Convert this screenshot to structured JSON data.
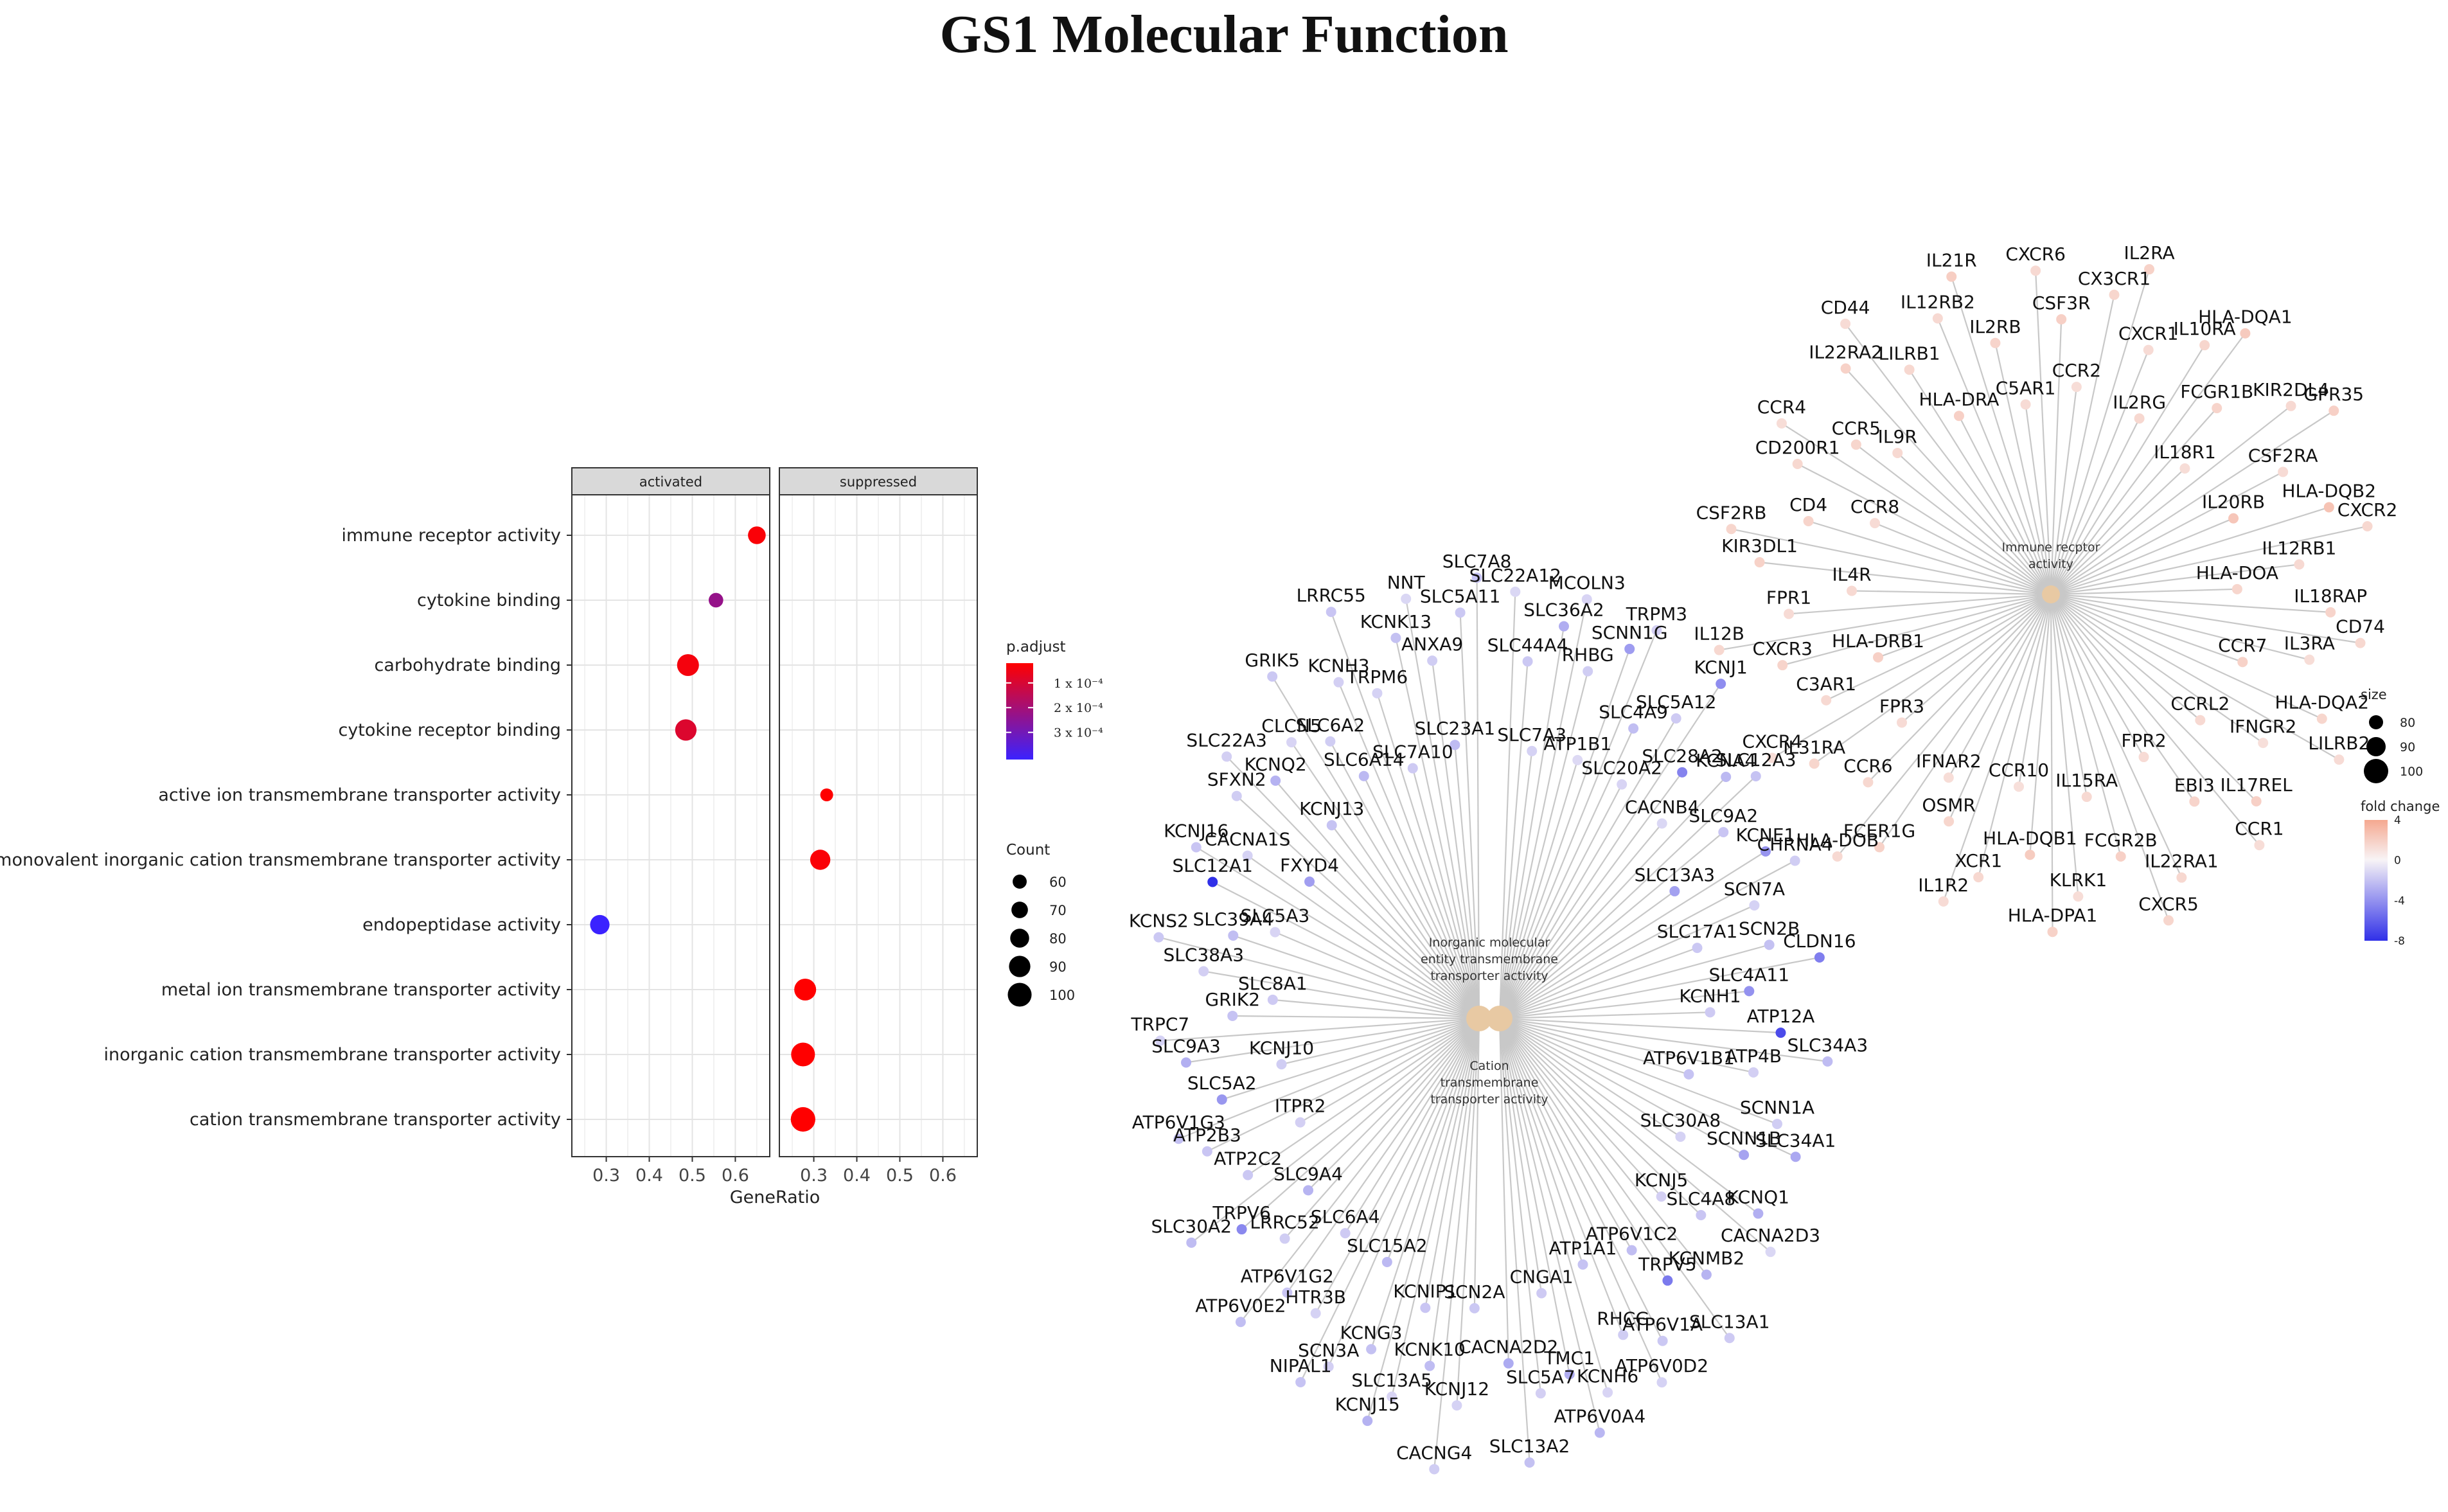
{
  "title": "GS1 Molecular Function",
  "chart_data": [
    {
      "type": "scatter",
      "subtype": "dotplot",
      "facets": [
        "activated",
        "suppressed"
      ],
      "xlabel": "GeneRatio",
      "xticks": [
        0.3,
        0.4,
        0.5,
        0.6
      ],
      "xlim": [
        0.22,
        0.68
      ],
      "terms": [
        "immune receptor activity",
        "cytokine binding",
        "carbohydrate binding",
        "cytokine receptor binding",
        "active ion transmembrane transporter activity",
        "monovalent inorganic cation transmembrane transporter activity",
        "endopeptidase activity",
        "metal ion transmembrane transporter activity",
        "inorganic cation transmembrane transporter activity",
        "cation transmembrane transporter activity"
      ],
      "points": [
        {
          "term": "immune receptor activity",
          "facet": "activated",
          "gene_ratio": 0.65,
          "count": 75,
          "p_adjust": 3e-05
        },
        {
          "term": "cytokine binding",
          "facet": "activated",
          "gene_ratio": 0.555,
          "count": 62,
          "p_adjust": 0.00023
        },
        {
          "term": "carbohydrate binding",
          "facet": "activated",
          "gene_ratio": 0.49,
          "count": 92,
          "p_adjust": 4e-05
        },
        {
          "term": "cytokine receptor binding",
          "facet": "activated",
          "gene_ratio": 0.485,
          "count": 90,
          "p_adjust": 9e-05
        },
        {
          "term": "active ion transmembrane transporter activity",
          "facet": "suppressed",
          "gene_ratio": 0.33,
          "count": 55,
          "p_adjust": 2e-05
        },
        {
          "term": "monovalent inorganic cation transmembrane transporter activity",
          "facet": "suppressed",
          "gene_ratio": 0.315,
          "count": 85,
          "p_adjust": 3e-05
        },
        {
          "term": "endopeptidase activity",
          "facet": "activated",
          "gene_ratio": 0.285,
          "count": 82,
          "p_adjust": 0.00041
        },
        {
          "term": "metal ion transmembrane transporter activity",
          "facet": "suppressed",
          "gene_ratio": 0.28,
          "count": 92,
          "p_adjust": 2e-05
        },
        {
          "term": "inorganic cation transmembrane transporter activity",
          "facet": "suppressed",
          "gene_ratio": 0.275,
          "count": 100,
          "p_adjust": 2e-05
        },
        {
          "term": "cation transmembrane transporter activity",
          "facet": "suppressed",
          "gene_ratio": 0.275,
          "count": 103,
          "p_adjust": 2e-05
        }
      ],
      "color_legend": {
        "title": "p.adjust",
        "low_color": "#ff0000",
        "high_color": "#3b22ff",
        "labels": [
          "1 x 10⁻⁴",
          "2 x 10⁻⁴",
          "3 x 10⁻⁴"
        ],
        "values": [
          0.0001,
          0.0002,
          0.0003
        ],
        "range": [
          2e-05,
          0.00041
        ]
      },
      "size_legend": {
        "title": "Count",
        "values": [
          60,
          70,
          80,
          90,
          100
        ],
        "labels": [
          "60",
          "70",
          "80",
          "90",
          "100"
        ]
      }
    },
    {
      "type": "network",
      "subtype": "cnetplot",
      "hubs": [
        {
          "id": "immune",
          "label": [
            "Immune recptor",
            "activity"
          ]
        },
        {
          "id": "inorganic",
          "label": [
            "Inorganic molecular",
            "entity transmembrane",
            "transporter activity"
          ]
        },
        {
          "id": "cation",
          "label": [
            "Cation",
            "transmembrane",
            "transporter activity"
          ]
        }
      ],
      "size_legend": {
        "title": "size",
        "values": [
          80,
          90,
          100
        ],
        "labels": [
          "80",
          "90",
          "100"
        ]
      },
      "fold_change_legend": {
        "title": "fold change",
        "ticks": [
          4,
          0,
          -4,
          -8
        ],
        "labels": [
          "4",
          "0",
          "-4",
          "-8"
        ],
        "high_color": "#f5a890",
        "mid_color": "#f8f4f6",
        "low_color": "#3030e8"
      },
      "immune_genes": [
        {
          "label": "CXCR6",
          "fc": 1.4
        },
        {
          "label": "CSF3R",
          "fc": 1.9
        },
        {
          "label": "CCR2",
          "fc": 1.2
        },
        {
          "label": "CX3CR1",
          "fc": 1.6
        },
        {
          "label": "IL2RA",
          "fc": 1.8
        },
        {
          "label": "CXCR1",
          "fc": 1.3
        },
        {
          "label": "IL2RG",
          "fc": 1.5
        },
        {
          "label": "IL10RA",
          "fc": 1.6
        },
        {
          "label": "HLA-DQA1",
          "fc": 2.2
        },
        {
          "label": "FCGR1B",
          "fc": 1.7
        },
        {
          "label": "IL18R1",
          "fc": 1.2
        },
        {
          "label": "KIR2DL4",
          "fc": 1.4
        },
        {
          "label": "GPR35",
          "fc": 1.9
        },
        {
          "label": "CSF2RA",
          "fc": 1.3
        },
        {
          "label": "IL20RB",
          "fc": 2.4
        },
        {
          "label": "HLA-DQB2",
          "fc": 2.6
        },
        {
          "label": "CXCR2",
          "fc": 1.5
        },
        {
          "label": "IL12RB1",
          "fc": 1.4
        },
        {
          "label": "HLA-DOA",
          "fc": 1.6
        },
        {
          "label": "IL18RAP",
          "fc": 1.7
        },
        {
          "label": "CD74",
          "fc": 1.5
        },
        {
          "label": "IL3RA",
          "fc": 1.2
        },
        {
          "label": "CCR7",
          "fc": 1.8
        },
        {
          "label": "HLA-DQA2",
          "fc": 1.6
        },
        {
          "label": "LILRB2",
          "fc": 1.3
        },
        {
          "label": "IFNGR2",
          "fc": 1.1
        },
        {
          "label": "CCRL2",
          "fc": 1.4
        },
        {
          "label": "IL17REL",
          "fc": 1.9
        },
        {
          "label": "CCR1",
          "fc": 1.2
        },
        {
          "label": "EBI3",
          "fc": 1.7
        },
        {
          "label": "FPR2",
          "fc": 1.3
        },
        {
          "label": "IL22RA1",
          "fc": 1.5
        },
        {
          "label": "CXCR5",
          "fc": 1.6
        },
        {
          "label": "FCGR2B",
          "fc": 1.9
        },
        {
          "label": "IL15RA",
          "fc": 1.4
        },
        {
          "label": "KLRK1",
          "fc": 1.2
        },
        {
          "label": "HLA-DPA1",
          "fc": 1.8
        },
        {
          "label": "HLA-DQB1",
          "fc": 2.1
        },
        {
          "label": "CCR10",
          "fc": 1.1
        },
        {
          "label": "XCR1",
          "fc": 1.5
        },
        {
          "label": "IL1R2",
          "fc": 1.3
        },
        {
          "label": "OSMR",
          "fc": 1.6
        },
        {
          "label": "IFNAR2",
          "fc": 1.2
        },
        {
          "label": "FCER1G",
          "fc": 1.8
        },
        {
          "label": "HLA-DOB",
          "fc": 1.4
        },
        {
          "label": "CCR6",
          "fc": 1.5
        },
        {
          "label": "FPR3",
          "fc": 1.3
        },
        {
          "label": "IL31RA",
          "fc": 1.6
        },
        {
          "label": "CXCR4",
          "fc": 1.2
        },
        {
          "label": "C3AR1",
          "fc": 1.4
        },
        {
          "label": "HLA-DRB1",
          "fc": 1.9
        },
        {
          "label": "CXCR3",
          "fc": 1.7
        },
        {
          "label": "IL12B",
          "fc": 1.5
        },
        {
          "label": "FPR1",
          "fc": 1.3
        },
        {
          "label": "IL4R",
          "fc": 1.4
        },
        {
          "label": "KIR3DL1",
          "fc": 1.8
        },
        {
          "label": "CSF2RB",
          "fc": 1.6
        },
        {
          "label": "CD4",
          "fc": 1.7
        },
        {
          "label": "CCR8",
          "fc": 1.3
        },
        {
          "label": "CD200R1",
          "fc": 1.5
        },
        {
          "label": "CCR4",
          "fc": 1.2
        },
        {
          "label": "CCR5",
          "fc": 1.6
        },
        {
          "label": "IL9R",
          "fc": 1.4
        },
        {
          "label": "IL22RA2",
          "fc": 1.8
        },
        {
          "label": "CD44",
          "fc": 1.3
        },
        {
          "label": "LILRB1",
          "fc": 1.5
        },
        {
          "label": "HLA-DRA",
          "fc": 1.9
        },
        {
          "label": "IL12RB2",
          "fc": 1.4
        },
        {
          "label": "IL21R",
          "fc": 2.0
        },
        {
          "label": "IL2RB",
          "fc": 1.7
        },
        {
          "label": "C5AR1",
          "fc": 1.3
        }
      ],
      "transporter_genes": [
        {
          "label": "SLC22A12",
          "fc": -1.2
        },
        {
          "label": "SLC44A4",
          "fc": -1.8
        },
        {
          "label": "SLC7A3",
          "fc": -1.4
        },
        {
          "label": "SLC36A2",
          "fc": -2.9
        },
        {
          "label": "MCOLN3",
          "fc": -1.3
        },
        {
          "label": "RHBG",
          "fc": -1.6
        },
        {
          "label": "ATP1B1",
          "fc": -1.1
        },
        {
          "label": "SCNN1G",
          "fc": -3.6
        },
        {
          "label": "TRPM3",
          "fc": -1.5
        },
        {
          "label": "SLC4A9",
          "fc": -2.2
        },
        {
          "label": "SLC20A2",
          "fc": -1.3
        },
        {
          "label": "SLC5A12",
          "fc": -1.7
        },
        {
          "label": "KCNJ1",
          "fc": -4.2
        },
        {
          "label": "SLC28A2",
          "fc": -4.6
        },
        {
          "label": "CACNB4",
          "fc": -1.2
        },
        {
          "label": "KCNA4",
          "fc": -2.4
        },
        {
          "label": "SLC12A3",
          "fc": -2.0
        },
        {
          "label": "SLC9A2",
          "fc": -1.9
        },
        {
          "label": "SLC13A3",
          "fc": -3.4
        },
        {
          "label": "KCNE1",
          "fc": -3.9
        },
        {
          "label": "CHRNA4",
          "fc": -1.6
        },
        {
          "label": "SCN7A",
          "fc": -1.4
        },
        {
          "label": "SLC17A1",
          "fc": -1.8
        },
        {
          "label": "SCN2B",
          "fc": -2.1
        },
        {
          "label": "CLDN16",
          "fc": -4.8
        },
        {
          "label": "SLC4A11",
          "fc": -4.0
        },
        {
          "label": "KCNH1",
          "fc": -1.7
        },
        {
          "label": "ATP12A",
          "fc": -6.9
        },
        {
          "label": "SLC34A3",
          "fc": -2.3
        },
        {
          "label": "ATP4B",
          "fc": -1.5
        },
        {
          "label": "ATP6V1B1",
          "fc": -2.0
        },
        {
          "label": "SCNN1A",
          "fc": -1.6
        },
        {
          "label": "SLC34A1",
          "fc": -3.1
        },
        {
          "label": "SCNN1B",
          "fc": -3.3
        },
        {
          "label": "SLC30A8",
          "fc": -1.4
        },
        {
          "label": "KCNQ1",
          "fc": -2.8
        },
        {
          "label": "CACNA2D3",
          "fc": -1.2
        },
        {
          "label": "SLC4A8",
          "fc": -1.9
        },
        {
          "label": "KCNJ5",
          "fc": -1.5
        },
        {
          "label": "KCNMB2",
          "fc": -2.6
        },
        {
          "label": "SLC13A1",
          "fc": -1.7
        },
        {
          "label": "TRPV5",
          "fc": -5.0
        },
        {
          "label": "ATP6V1C2",
          "fc": -2.2
        },
        {
          "label": "ATP6V1A",
          "fc": -1.8
        },
        {
          "label": "ATP6V0D2",
          "fc": -1.4
        },
        {
          "label": "RHCG",
          "fc": -1.6
        },
        {
          "label": "ATP1A1",
          "fc": -2.0
        },
        {
          "label": "KCNH6",
          "fc": -1.3
        },
        {
          "label": "ATP6V0A4",
          "fc": -2.5
        },
        {
          "label": "TMC1",
          "fc": -2.9
        },
        {
          "label": "CNGA1",
          "fc": -1.7
        },
        {
          "label": "SLC5A7",
          "fc": -1.5
        },
        {
          "label": "SLC13A2",
          "fc": -2.1
        },
        {
          "label": "CACNA2D2",
          "fc": -3.0
        },
        {
          "label": "SCN2A",
          "fc": -1.8
        },
        {
          "label": "KCNJ12",
          "fc": -1.4
        },
        {
          "label": "CACNG4",
          "fc": -1.6
        },
        {
          "label": "KCNK10",
          "fc": -2.3
        },
        {
          "label": "KCNIP1",
          "fc": -1.9
        },
        {
          "label": "SLC13A5",
          "fc": -1.3
        },
        {
          "label": "KCNJ15",
          "fc": -2.7
        },
        {
          "label": "KCNG3",
          "fc": -2.1
        },
        {
          "label": "SLC15A2",
          "fc": -2.4
        },
        {
          "label": "SCN3A",
          "fc": -1.5
        },
        {
          "label": "NIPAL1",
          "fc": -2.0
        },
        {
          "label": "HTR3B",
          "fc": -1.4
        },
        {
          "label": "SLC6A4",
          "fc": -1.7
        },
        {
          "label": "ATP6V1G2",
          "fc": -1.9
        },
        {
          "label": "ATP6V0E2",
          "fc": -2.2
        },
        {
          "label": "LRRC52",
          "fc": -1.6
        },
        {
          "label": "SLC9A4",
          "fc": -2.6
        },
        {
          "label": "TRPV6",
          "fc": -4.4
        },
        {
          "label": "SLC30A2",
          "fc": -2.3
        },
        {
          "label": "ATP2C2",
          "fc": -1.8
        },
        {
          "label": "ITPR2",
          "fc": -1.5
        },
        {
          "label": "ATP2B3",
          "fc": -1.9
        },
        {
          "label": "ATP6V1G3",
          "fc": -2.1
        },
        {
          "label": "SLC5A2",
          "fc": -3.8
        },
        {
          "label": "KCNJ10",
          "fc": -1.6
        },
        {
          "label": "SLC9A3",
          "fc": -2.8
        },
        {
          "label": "TRPC7",
          "fc": -1.4
        },
        {
          "label": "GRIK2",
          "fc": -2.0
        },
        {
          "label": "SLC8A1",
          "fc": -1.7
        },
        {
          "label": "SLC38A3",
          "fc": -1.5
        },
        {
          "label": "KCNS2",
          "fc": -1.8
        },
        {
          "label": "SLC39A4",
          "fc": -2.2
        },
        {
          "label": "SLC5A3",
          "fc": -1.3
        },
        {
          "label": "SLC12A1",
          "fc": -8.0
        },
        {
          "label": "KCNJ16",
          "fc": -1.9
        },
        {
          "label": "CACNA1S",
          "fc": -1.4
        },
        {
          "label": "FXYD4",
          "fc": -3.5
        },
        {
          "label": "SFXN2",
          "fc": -1.6
        },
        {
          "label": "SLC22A3",
          "fc": -1.5
        },
        {
          "label": "KCNQ2",
          "fc": -2.7
        },
        {
          "label": "KCNJ13",
          "fc": -2.0
        },
        {
          "label": "CLCN5",
          "fc": -1.3
        },
        {
          "label": "GRIK5",
          "fc": -1.8
        },
        {
          "label": "SLC6A2",
          "fc": -1.6
        },
        {
          "label": "SLC6A14",
          "fc": -2.4
        },
        {
          "label": "KCNH3",
          "fc": -1.5
        },
        {
          "label": "LRRC55",
          "fc": -1.9
        },
        {
          "label": "TRPM6",
          "fc": -1.4
        },
        {
          "label": "SLC7A10",
          "fc": -1.7
        },
        {
          "label": "KCNK13",
          "fc": -2.1
        },
        {
          "label": "NNT",
          "fc": -1.2
        },
        {
          "label": "ANXA9",
          "fc": -1.6
        },
        {
          "label": "SLC23A1",
          "fc": -2.3
        },
        {
          "label": "SLC5A11",
          "fc": -1.8
        },
        {
          "label": "SLC7A8",
          "fc": -2.0
        }
      ]
    }
  ]
}
